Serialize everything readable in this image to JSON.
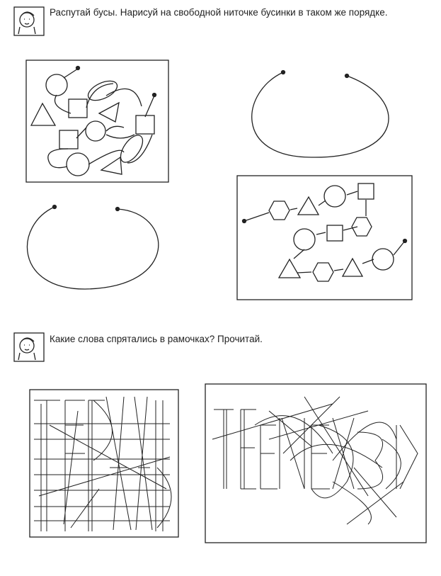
{
  "tasks": [
    {
      "instruction": "Распутай бусы. Нарисуй на свободной ниточке бусинки в таком же порядке."
    },
    {
      "instruction": "Какие слова спрятались в рамочках? Прочитай."
    }
  ]
}
